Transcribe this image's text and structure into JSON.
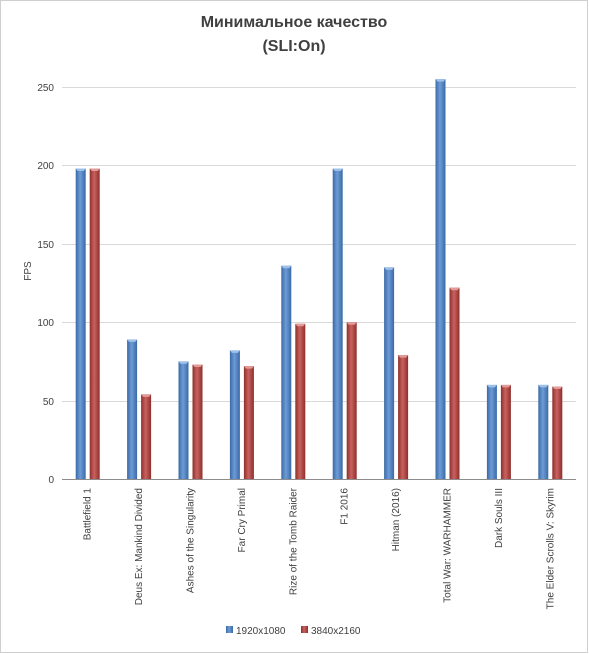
{
  "chart_data": {
    "type": "bar",
    "title": "Минимальное качество",
    "subtitle": "(SLI:On)",
    "ylabel": "FPS",
    "xlabel": "",
    "ylim": [
      0,
      250
    ],
    "yticks": [
      0,
      50,
      100,
      150,
      200,
      250
    ],
    "grid": true,
    "legend_position": "bottom",
    "categories": [
      "Battlefield 1",
      "Deus Ex: Mankind Divided",
      "Ashes of the Singularity",
      "Far Cry Primal",
      "Rize of the Tomb Raider",
      "F1 2016",
      "Hitman (2016)",
      "Total War: WARHAMMER",
      "Dark Souls III",
      "The Elder Scrolls V: Skyrim"
    ],
    "series": [
      {
        "name": "1920x1080",
        "color": "#4f81bd",
        "values": [
          198,
          89,
          75,
          82,
          136,
          198,
          135,
          255,
          60,
          60
        ]
      },
      {
        "name": "3840x2160",
        "color": "#c0504d",
        "values": [
          198,
          54,
          73,
          72,
          99,
          100,
          79,
          122,
          60,
          59
        ]
      }
    ]
  }
}
